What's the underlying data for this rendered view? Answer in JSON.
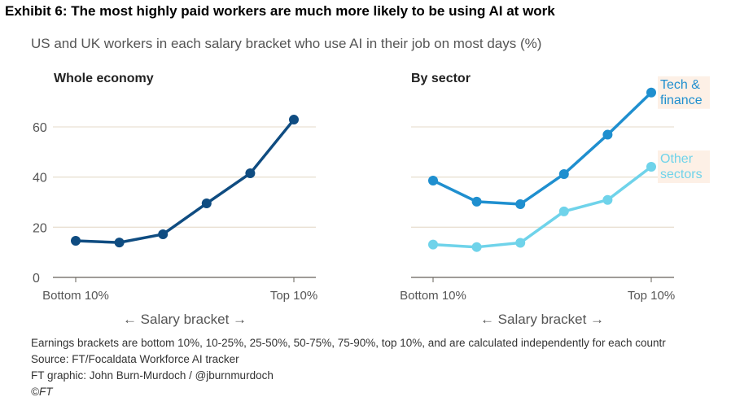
{
  "title": "Exhibit 6: The most highly paid workers are much more likely to be using AI at work",
  "subtitle": "US and UK workers in each salary bracket who use AI in their job on most days (%)",
  "footnotes": [
    "Earnings brackets are bottom 10%, 10-25%, 25-50%, 50-75%, 75-90%, top 10%, and are calculated independently for each countr",
    "Source: FT/Focaldata Workforce AI tracker",
    "FT graphic: John Burn-Murdoch / @jburnmurdoch",
    "©FT"
  ],
  "chart_data": [
    {
      "type": "line",
      "title": "Whole economy",
      "xlabel": "← Salary bracket →",
      "x": [
        "Bottom 10%",
        "10-25%",
        "25-50%",
        "50-75%",
        "75-90%",
        "Top 10%"
      ],
      "x_tick_labels": [
        "Bottom 10%",
        "Top 10%"
      ],
      "yticks": [
        0,
        20,
        40,
        60
      ],
      "ylim": [
        0,
        70
      ],
      "grid": true,
      "series": [
        {
          "values": [
            14.6,
            13.9,
            17.2,
            29.5,
            41.5,
            62.9
          ],
          "color": "#0f4c81"
        }
      ]
    },
    {
      "type": "line",
      "title": "By sector",
      "xlabel": "← Salary bracket →",
      "x": [
        "Bottom 10%",
        "10-25%",
        "25-50%",
        "50-75%",
        "75-90%",
        "Top 10%"
      ],
      "x_tick_labels": [
        "Bottom 10%",
        "Top 10%"
      ],
      "yticks": [
        0,
        20,
        40,
        60
      ],
      "ylim": [
        0,
        70
      ],
      "grid": true,
      "series": [
        {
          "name": "Tech & finance",
          "label_lines": [
            "Tech &",
            "finance"
          ],
          "values": [
            38.6,
            30.2,
            29.2,
            41.2,
            56.9,
            73.7
          ],
          "color": "#1f8fcf"
        },
        {
          "name": "Other sectors",
          "label_lines": [
            "Other",
            "sectors"
          ],
          "values": [
            13.1,
            12.1,
            13.8,
            26.3,
            30.9,
            44.1
          ],
          "color": "#6fd3ea"
        }
      ]
    }
  ]
}
